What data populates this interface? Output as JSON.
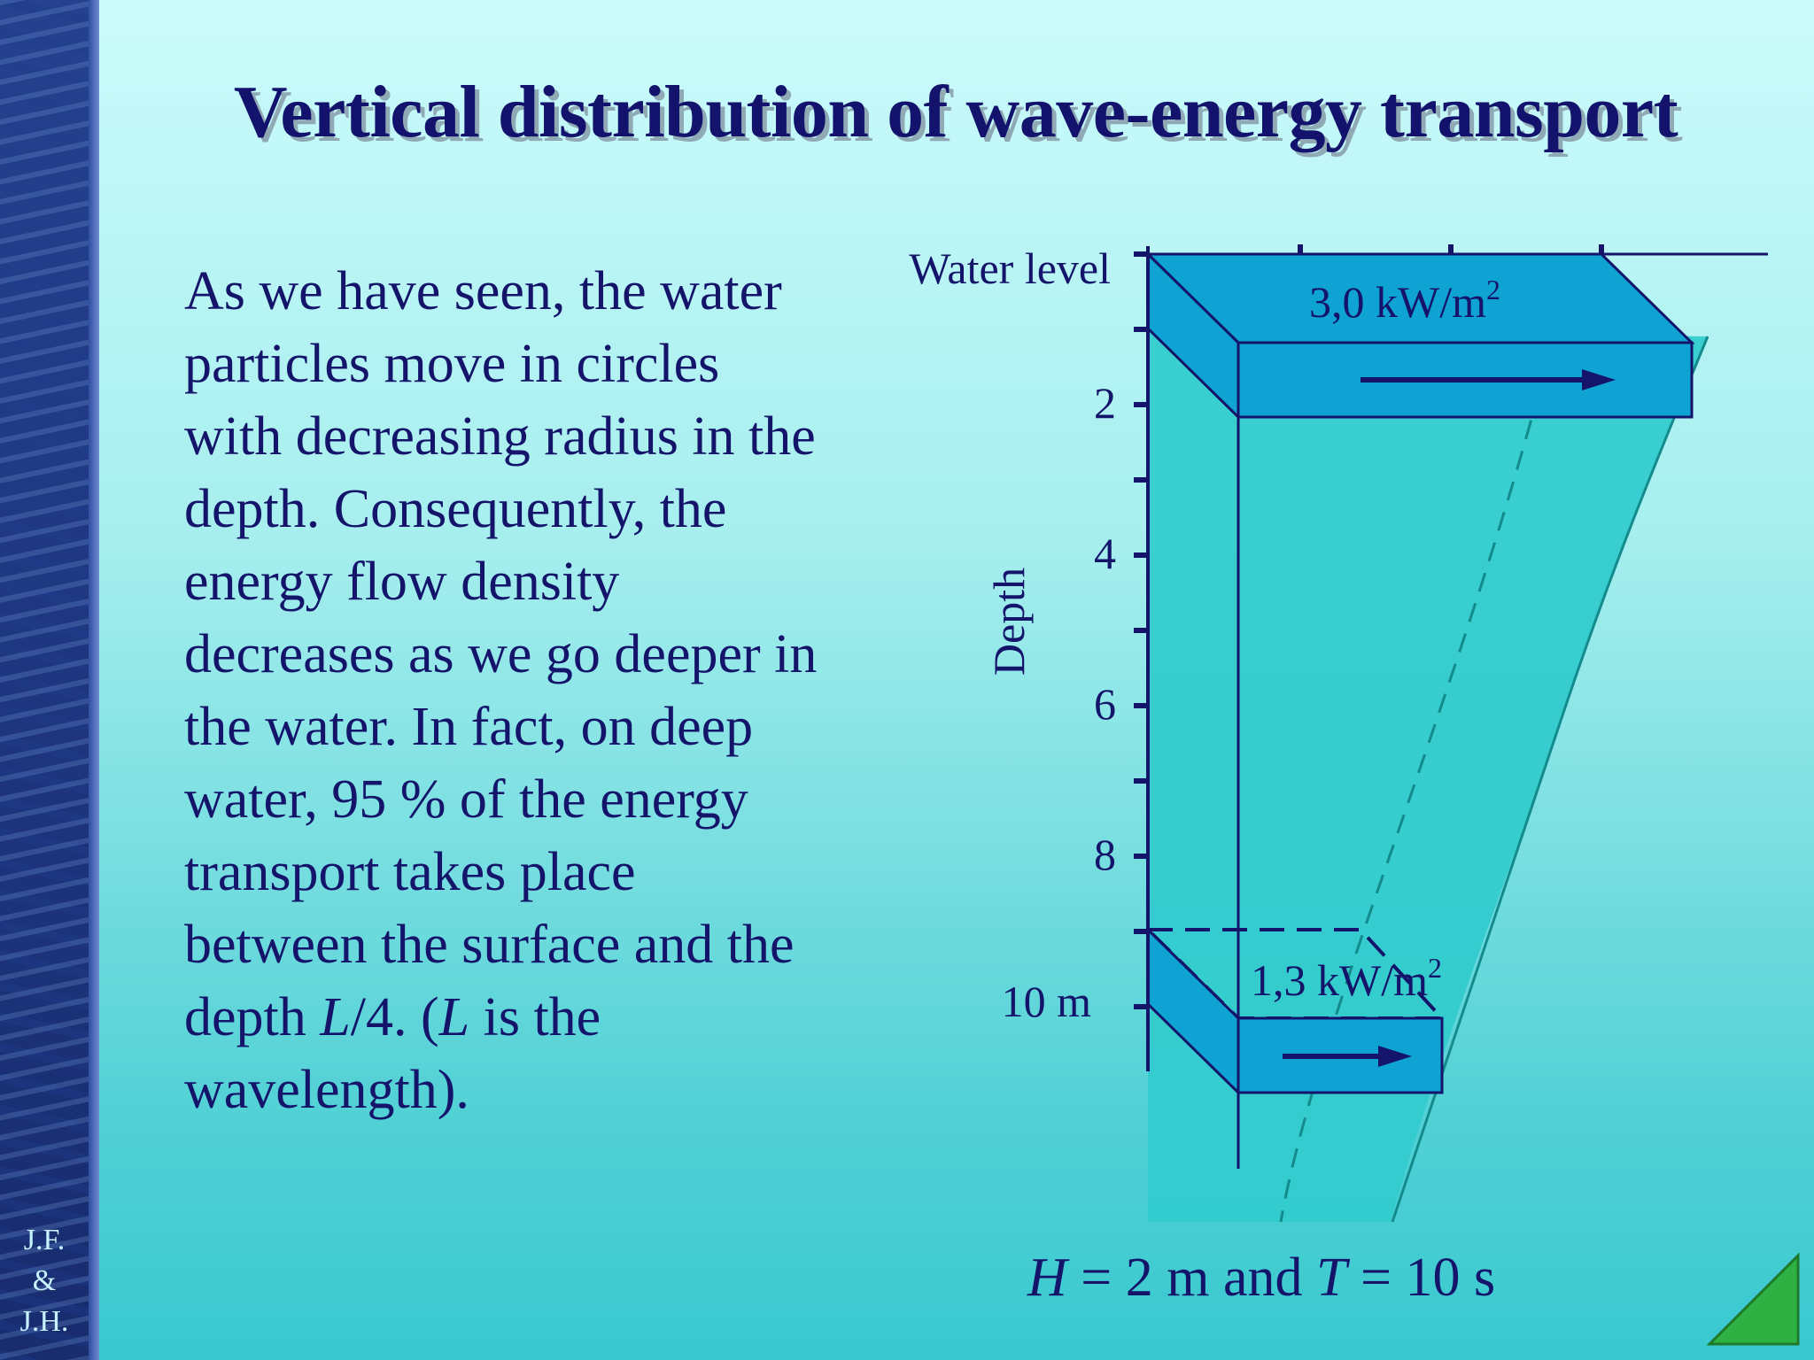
{
  "sidebar": {
    "credit_lines": [
      "J.F.",
      "&",
      "J.H."
    ]
  },
  "title": "Vertical distribution of wave-energy transport",
  "body": {
    "p1": "As we have seen, the water particles move in circles with decreasing radius in the depth. Consequently, the energy flow density decreases as we go deeper in the water.  In fact, on deep water, 95 % of the energy transport takes place between the surface and the depth ",
    "L1": "L",
    "p2": "/4. (",
    "L2": "L",
    "p3": " is the wavelength)."
  },
  "diagram": {
    "water_level_label": "Water level",
    "depth_axis_label": "Depth",
    "depth_ticks": [
      "2",
      "4",
      "6",
      "8",
      "10 m"
    ],
    "top_flux_label_main": "3,0 kW/m",
    "top_flux_label_sup": "2",
    "bottom_flux_label_main": "1,3 kW/m",
    "bottom_flux_label_sup": "2"
  },
  "caption": {
    "H": "H",
    "part1": " = 2 m and ",
    "T": "T",
    "part2": " = 10 s"
  },
  "colors": {
    "box_fill": "#0fa3d4",
    "wedge_fill": "#33cbcd",
    "ink": "#14146a",
    "nav_green": "#2fb043"
  },
  "nav": {
    "next_icon": "triangle-next-icon"
  }
}
